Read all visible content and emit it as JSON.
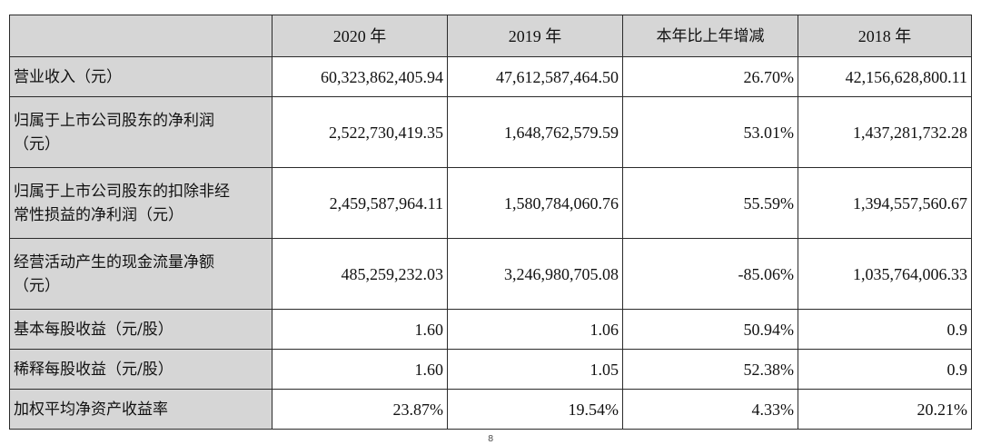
{
  "table": {
    "headers": [
      "",
      "2020 年",
      "2019 年",
      "本年比上年增减",
      "2018 年"
    ],
    "rows": [
      {
        "label": "营业收入（元）",
        "values": [
          "60,323,862,405.94",
          "47,612,587,464.50",
          "26.70%",
          "42,156,628,800.11"
        ]
      },
      {
        "label_lines": [
          "归属于上市公司股东的净利润",
          "（元）"
        ],
        "values": [
          "2,522,730,419.35",
          "1,648,762,579.59",
          "53.01%",
          "1,437,281,732.28"
        ]
      },
      {
        "label_lines": [
          "归属于上市公司股东的扣除非经",
          "常性损益的净利润（元）"
        ],
        "values": [
          "2,459,587,964.11",
          "1,580,784,060.76",
          "55.59%",
          "1,394,557,560.67"
        ]
      },
      {
        "label_lines": [
          "经营活动产生的现金流量净额",
          "（元）"
        ],
        "values": [
          "485,259,232.03",
          "3,246,980,705.08",
          "-85.06%",
          "1,035,764,006.33"
        ]
      },
      {
        "label": "基本每股收益（元/股）",
        "values": [
          "1.60",
          "1.06",
          "50.94%",
          "0.9"
        ]
      },
      {
        "label": "稀释每股收益（元/股）",
        "values": [
          "1.60",
          "1.05",
          "52.38%",
          "0.9"
        ]
      },
      {
        "label": "加权平均净资产收益率",
        "values": [
          "23.87%",
          "19.54%",
          "4.33%",
          "20.21%"
        ]
      }
    ]
  },
  "footer_mark": "8"
}
